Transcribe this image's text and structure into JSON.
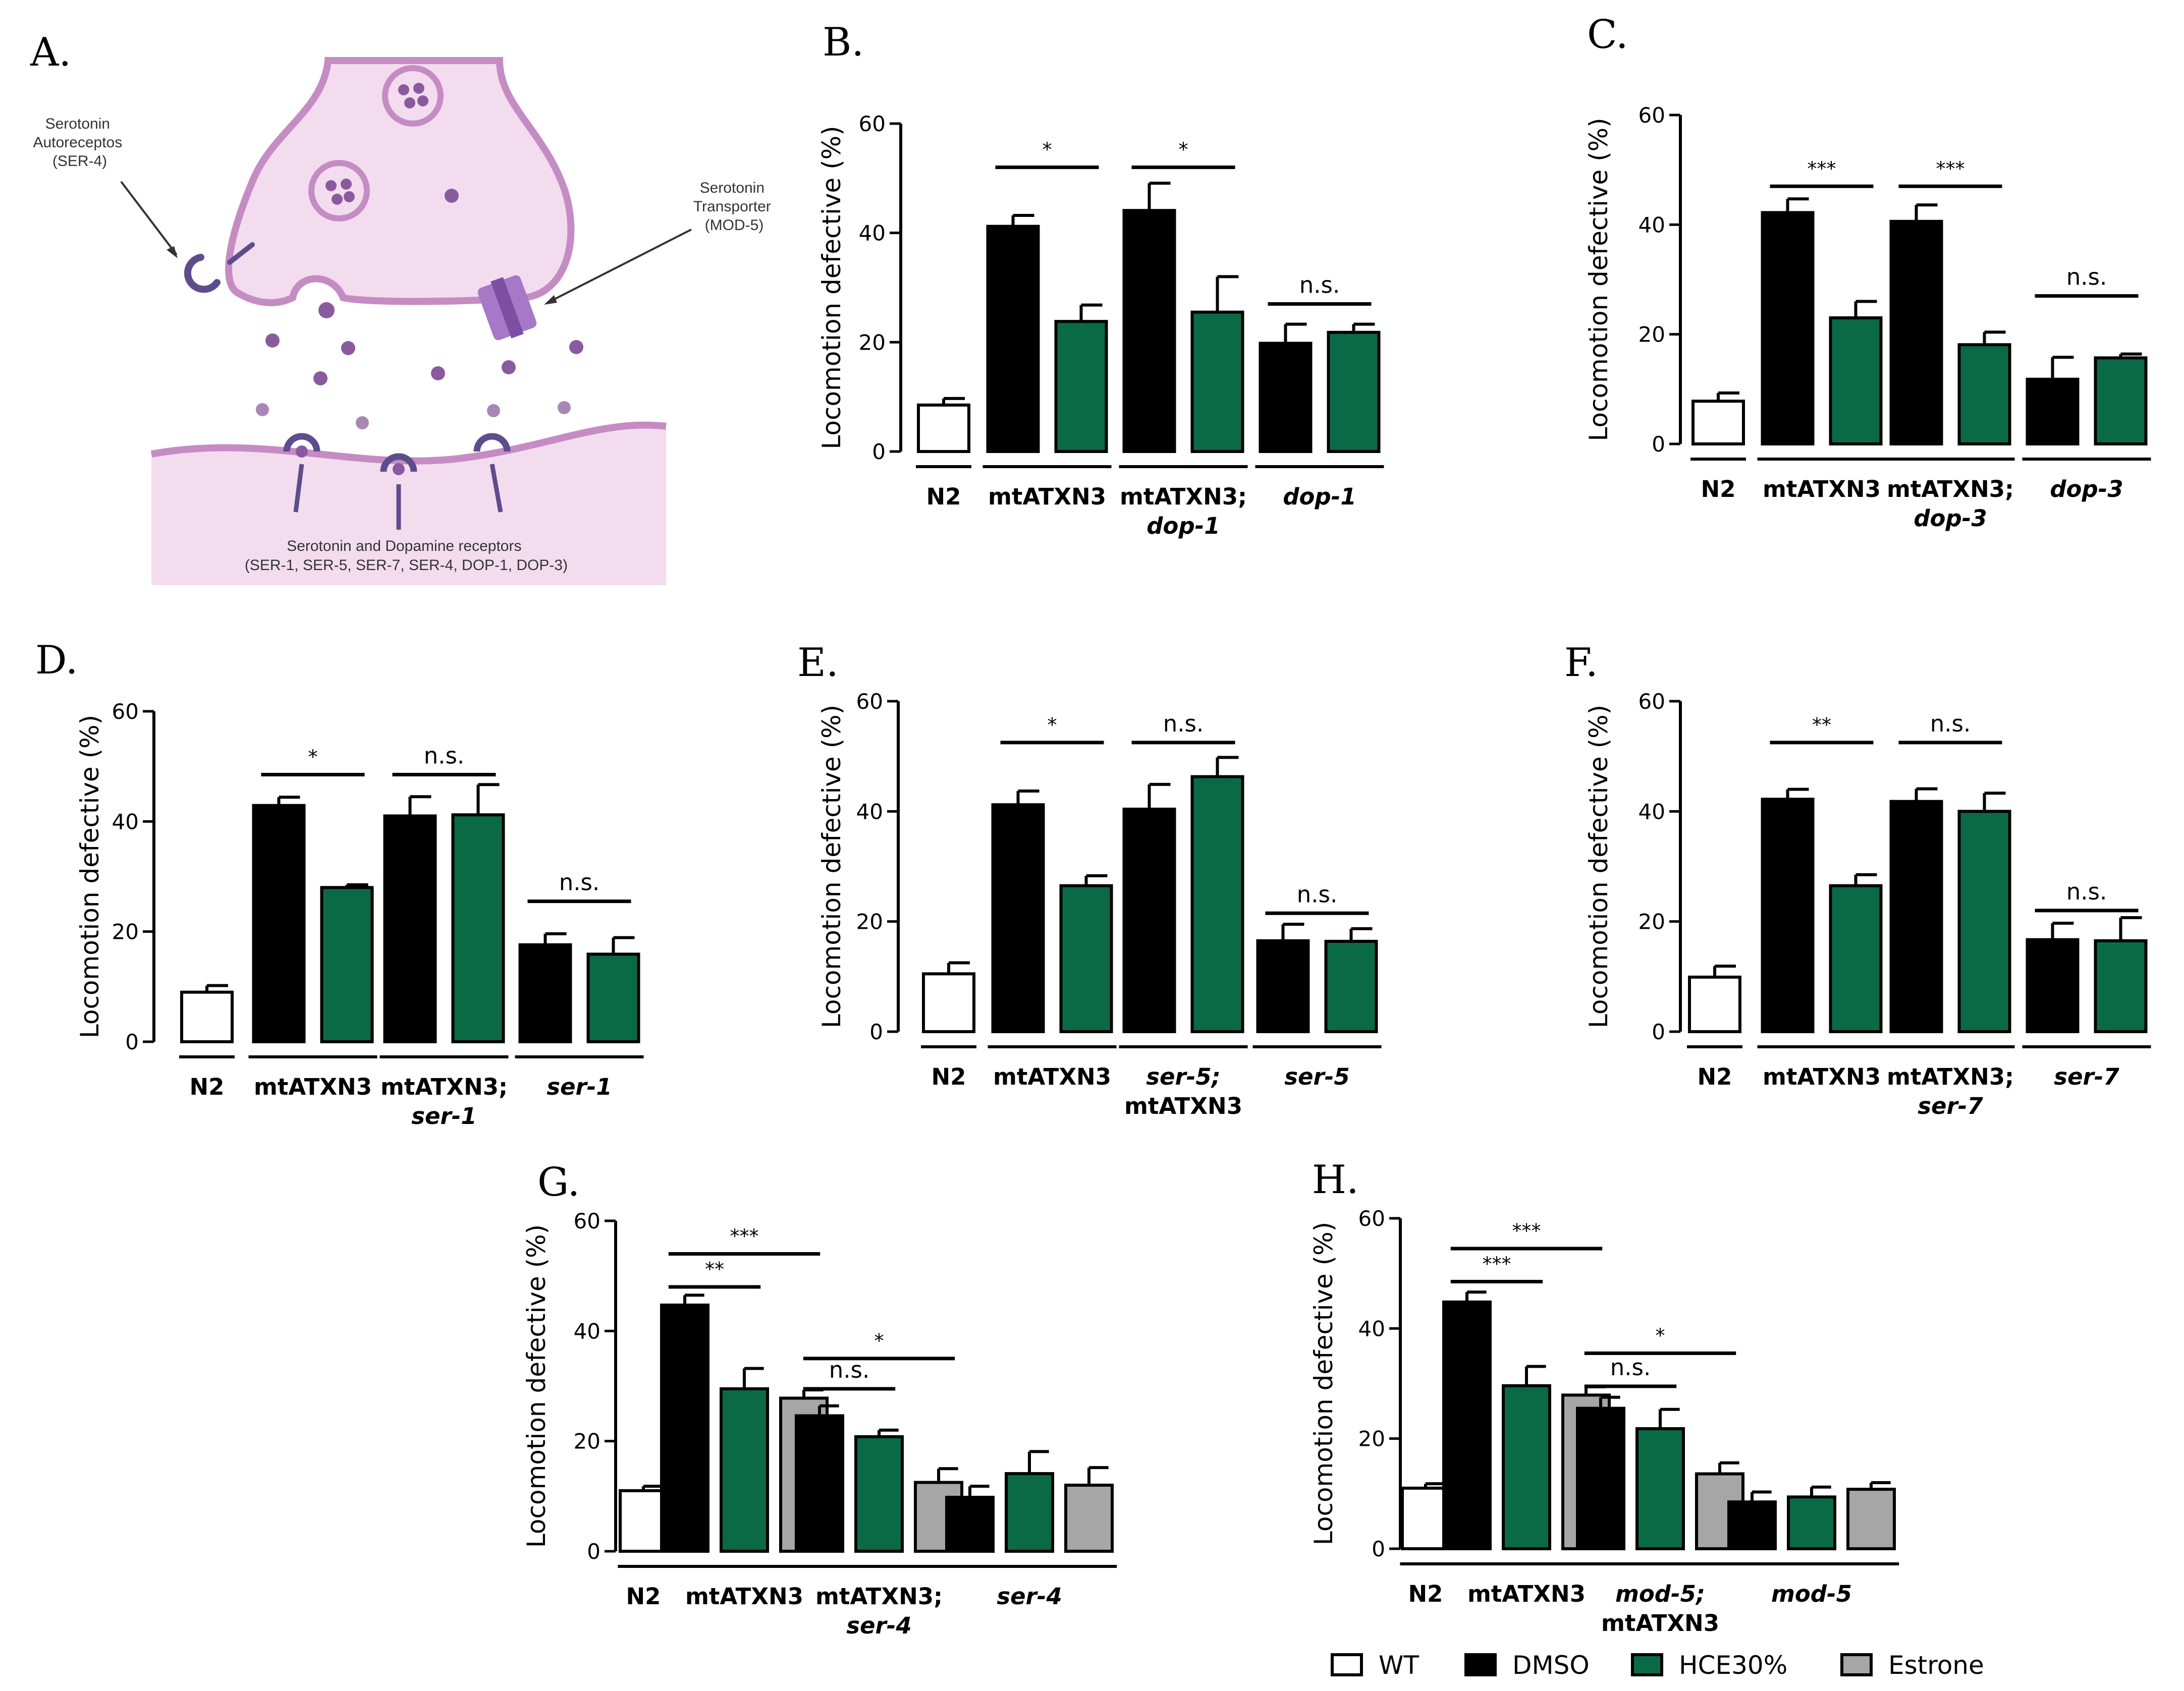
{
  "colors": {
    "WT": "#ffffff",
    "DMSO": "#000000",
    "HCE30%": "#0a6a45",
    "Estrone": "#a6a6a6",
    "membrane": "#c58cc4",
    "cytoplasm": "#f4dcef",
    "vesicle": "#8a5a9e",
    "receptor": "#5e4c8c",
    "transporter": "#a678c7"
  },
  "panel_a": {
    "letter": "A.",
    "autoreceptor_label": [
      "Serotonin",
      "Autoreceptos",
      "(SER-4)"
    ],
    "transporter_label": [
      "Serotonin",
      "Transporter",
      "(MOD-5)"
    ],
    "receptors_label": [
      "Serotonin and Dopamine receptors",
      "(SER-1, SER-5, SER-7, SER-4, DOP-1, DOP-3)"
    ]
  },
  "legend": [
    {
      "label": "WT",
      "key": "WT"
    },
    {
      "label": "DMSO",
      "key": "DMSO"
    },
    {
      "label": "HCE30%",
      "key": "HCE30%"
    },
    {
      "label": "Estrone",
      "key": "Estrone"
    }
  ],
  "chart_data": [
    {
      "id": "B",
      "letter": "B.",
      "type": "bar",
      "ylabel": "Locomotion defective (%)",
      "ylim": [
        0,
        60
      ],
      "yticks": [
        0,
        20,
        40,
        60
      ],
      "groups": [
        {
          "lines": [
            {
              "t": "N2",
              "it": false
            }
          ],
          "n": 1
        },
        {
          "lines": [
            {
              "t": "mtATXN3",
              "it": false
            }
          ],
          "n": 2
        },
        {
          "lines": [
            {
              "t": "mtATXN3;",
              "it": false
            },
            {
              "t": "dop-1",
              "it": true
            }
          ],
          "n": 2
        },
        {
          "lines": [
            {
              "t": "dop-1",
              "it": true
            }
          ],
          "n": 2
        }
      ],
      "bars": [
        {
          "key": "WT",
          "value": 8.5,
          "error": 1.2
        },
        {
          "key": "DMSO",
          "value": 41.2,
          "error": 2.0
        },
        {
          "key": "HCE30%",
          "value": 23.8,
          "error": 3.0
        },
        {
          "key": "DMSO",
          "value": 44.1,
          "error": 5.0
        },
        {
          "key": "HCE30%",
          "value": 25.5,
          "error": 6.5
        },
        {
          "key": "DMSO",
          "value": 19.8,
          "error": 3.5
        },
        {
          "key": "HCE30%",
          "value": 21.8,
          "error": 1.5
        }
      ],
      "annotations": [
        {
          "from": 1,
          "to": 2,
          "y": 52,
          "label": "*"
        },
        {
          "from": 3,
          "to": 4,
          "y": 52,
          "label": "*"
        },
        {
          "from": 5,
          "to": 6,
          "y": 27,
          "label": "n.s."
        }
      ]
    },
    {
      "id": "C",
      "letter": "C.",
      "type": "bar",
      "ylabel": "Locomotion defective (%)",
      "ylim": [
        0,
        60
      ],
      "yticks": [
        0,
        20,
        40,
        60
      ],
      "groups": [
        {
          "lines": [
            {
              "t": "N2",
              "it": false
            }
          ],
          "n": 1
        },
        {
          "lines": [
            {
              "t": "mtATXN3",
              "it": false
            }
          ],
          "n": 2
        },
        {
          "lines": [
            {
              "t": "mtATXN3;",
              "it": false
            },
            {
              "t": "dop-3",
              "it": true
            }
          ],
          "n": 2
        },
        {
          "lines": [
            {
              "t": "dop-3",
              "it": true
            }
          ],
          "n": 2
        }
      ],
      "bars": [
        {
          "key": "WT",
          "value": 7.8,
          "error": 1.5
        },
        {
          "key": "DMSO",
          "value": 42.2,
          "error": 2.5
        },
        {
          "key": "HCE30%",
          "value": 23.0,
          "error": 3.0
        },
        {
          "key": "DMSO",
          "value": 40.6,
          "error": 3.0
        },
        {
          "key": "HCE30%",
          "value": 18.1,
          "error": 2.3
        },
        {
          "key": "DMSO",
          "value": 11.8,
          "error": 4.0
        },
        {
          "key": "HCE30%",
          "value": 15.7,
          "error": 0.7
        }
      ],
      "annotations": [
        {
          "from": 1,
          "to": 2,
          "y": 47,
          "label": "***"
        },
        {
          "from": 3,
          "to": 4,
          "y": 47,
          "label": "***"
        },
        {
          "from": 5,
          "to": 6,
          "y": 27,
          "label": "n.s."
        }
      ]
    },
    {
      "id": "D",
      "letter": "D.",
      "type": "bar",
      "ylabel": "Locomotion defective (%)",
      "ylim": [
        0,
        60
      ],
      "yticks": [
        0,
        20,
        40,
        60
      ],
      "groups": [
        {
          "lines": [
            {
              "t": "N2",
              "it": false
            }
          ],
          "n": 1
        },
        {
          "lines": [
            {
              "t": "mtATXN3",
              "it": false
            }
          ],
          "n": 2
        },
        {
          "lines": [
            {
              "t": "mtATXN3;",
              "it": false
            },
            {
              "t": "ser-1",
              "it": true
            }
          ],
          "n": 2
        },
        {
          "lines": [
            {
              "t": "ser-1",
              "it": true
            }
          ],
          "n": 2
        }
      ],
      "bars": [
        {
          "key": "WT",
          "value": 9.0,
          "error": 1.2
        },
        {
          "key": "DMSO",
          "value": 42.9,
          "error": 1.5
        },
        {
          "key": "HCE30%",
          "value": 28.0,
          "error": 0.5
        },
        {
          "key": "DMSO",
          "value": 41.0,
          "error": 3.5
        },
        {
          "key": "HCE30%",
          "value": 41.2,
          "error": 5.5
        },
        {
          "key": "DMSO",
          "value": 17.6,
          "error": 2.0
        },
        {
          "key": "HCE30%",
          "value": 15.9,
          "error": 3.0
        }
      ],
      "annotations": [
        {
          "from": 1,
          "to": 2,
          "y": 48.5,
          "label": "*"
        },
        {
          "from": 3,
          "to": 4,
          "y": 48.5,
          "label": "n.s."
        },
        {
          "from": 5,
          "to": 6,
          "y": 25.5,
          "label": "n.s."
        }
      ]
    },
    {
      "id": "E",
      "letter": "E.",
      "type": "bar",
      "ylabel": "Locomotion defective (%)",
      "ylim": [
        0,
        60
      ],
      "yticks": [
        0,
        20,
        40,
        60
      ],
      "groups": [
        {
          "lines": [
            {
              "t": "N2",
              "it": false
            }
          ],
          "n": 1
        },
        {
          "lines": [
            {
              "t": "mtATXN3",
              "it": false
            }
          ],
          "n": 2
        },
        {
          "lines": [
            {
              "t": "ser-5;",
              "it": true
            },
            {
              "t": "mtATXN3",
              "it": false
            }
          ],
          "n": 2
        },
        {
          "lines": [
            {
              "t": "ser-5",
              "it": true
            }
          ],
          "n": 2
        }
      ],
      "bars": [
        {
          "key": "WT",
          "value": 10.5,
          "error": 2.0
        },
        {
          "key": "DMSO",
          "value": 41.2,
          "error": 2.5
        },
        {
          "key": "HCE30%",
          "value": 26.5,
          "error": 1.8
        },
        {
          "key": "DMSO",
          "value": 40.4,
          "error": 4.5
        },
        {
          "key": "HCE30%",
          "value": 46.3,
          "error": 3.5
        },
        {
          "key": "DMSO",
          "value": 16.5,
          "error": 3.0
        },
        {
          "key": "HCE30%",
          "value": 16.4,
          "error": 2.3
        }
      ],
      "annotations": [
        {
          "from": 1,
          "to": 2,
          "y": 52.5,
          "label": "*"
        },
        {
          "from": 3,
          "to": 4,
          "y": 52.5,
          "label": "n.s."
        },
        {
          "from": 5,
          "to": 6,
          "y": 21.5,
          "label": "n.s."
        }
      ]
    },
    {
      "id": "F",
      "letter": "F.",
      "type": "bar",
      "ylabel": "Locomotion defective (%)",
      "ylim": [
        0,
        60
      ],
      "yticks": [
        0,
        20,
        40,
        60
      ],
      "groups": [
        {
          "lines": [
            {
              "t": "N2",
              "it": false
            }
          ],
          "n": 1
        },
        {
          "lines": [
            {
              "t": "mtATXN3",
              "it": false
            }
          ],
          "n": 2
        },
        {
          "lines": [
            {
              "t": "mtATXN3;",
              "it": false
            },
            {
              "t": "ser-7",
              "it": true
            }
          ],
          "n": 2
        },
        {
          "lines": [
            {
              "t": "ser-7",
              "it": true
            }
          ],
          "n": 2
        }
      ],
      "bars": [
        {
          "key": "WT",
          "value": 9.9,
          "error": 2.0
        },
        {
          "key": "DMSO",
          "value": 42.2,
          "error": 1.8
        },
        {
          "key": "HCE30%",
          "value": 26.5,
          "error": 2.0
        },
        {
          "key": "DMSO",
          "value": 41.8,
          "error": 2.3
        },
        {
          "key": "HCE30%",
          "value": 40.0,
          "error": 3.3
        },
        {
          "key": "DMSO",
          "value": 16.7,
          "error": 3.0
        },
        {
          "key": "HCE30%",
          "value": 16.5,
          "error": 4.2
        }
      ],
      "annotations": [
        {
          "from": 1,
          "to": 2,
          "y": 52.5,
          "label": "**"
        },
        {
          "from": 3,
          "to": 4,
          "y": 52.5,
          "label": "n.s."
        },
        {
          "from": 5,
          "to": 6,
          "y": 22,
          "label": "n.s."
        }
      ]
    },
    {
      "id": "G",
      "letter": "G.",
      "type": "bar",
      "ylabel": "Locomotion defective (%)",
      "ylim": [
        0,
        60
      ],
      "yticks": [
        0,
        20,
        40,
        60
      ],
      "groups": [
        {
          "lines": [
            {
              "t": "N2",
              "it": false
            }
          ],
          "n": 1
        },
        {
          "lines": [
            {
              "t": "mtATXN3",
              "it": false
            }
          ],
          "n": 3
        },
        {
          "lines": [
            {
              "t": "mtATXN3;",
              "it": false
            },
            {
              "t": "ser-4",
              "it": true
            }
          ],
          "n": 3
        },
        {
          "lines": [
            {
              "t": "ser-4",
              "it": true
            }
          ],
          "n": 3
        }
      ],
      "bars": [
        {
          "key": "WT",
          "value": 11.0,
          "error": 0.8
        },
        {
          "key": "DMSO",
          "value": 44.7,
          "error": 1.8
        },
        {
          "key": "HCE30%",
          "value": 29.5,
          "error": 3.7
        },
        {
          "key": "Estrone",
          "value": 27.8,
          "error": 1.5
        },
        {
          "key": "DMSO",
          "value": 24.6,
          "error": 1.8
        },
        {
          "key": "HCE30%",
          "value": 20.8,
          "error": 1.2
        },
        {
          "key": "Estrone",
          "value": 12.5,
          "error": 2.5
        },
        {
          "key": "DMSO",
          "value": 9.8,
          "error": 2.0
        },
        {
          "key": "HCE30%",
          "value": 14.1,
          "error": 4.0
        },
        {
          "key": "Estrone",
          "value": 12.0,
          "error": 3.2
        }
      ],
      "annotations": [
        {
          "from": 1,
          "to": 3,
          "y": 54,
          "label": "***"
        },
        {
          "from": 1,
          "to": 2,
          "y": 48,
          "label": "**"
        },
        {
          "from": 4,
          "to": 6,
          "y": 35,
          "label": "*"
        },
        {
          "from": 4,
          "to": 5,
          "y": 29.5,
          "label": "n.s."
        }
      ]
    },
    {
      "id": "H",
      "letter": "H.",
      "type": "bar",
      "ylabel": "Locomotion defective (%)",
      "ylim": [
        0,
        60
      ],
      "yticks": [
        0,
        20,
        40,
        60
      ],
      "groups": [
        {
          "lines": [
            {
              "t": "N2",
              "it": false
            }
          ],
          "n": 1
        },
        {
          "lines": [
            {
              "t": "mtATXN3",
              "it": false
            }
          ],
          "n": 3
        },
        {
          "lines": [
            {
              "t": "mod-5;",
              "it": true
            },
            {
              "t": "mtATXN3",
              "it": false
            }
          ],
          "n": 3
        },
        {
          "lines": [
            {
              "t": "mod-5",
              "it": true
            }
          ],
          "n": 3
        }
      ],
      "bars": [
        {
          "key": "WT",
          "value": 11.0,
          "error": 0.8
        },
        {
          "key": "DMSO",
          "value": 44.8,
          "error": 1.8
        },
        {
          "key": "HCE30%",
          "value": 29.6,
          "error": 3.5
        },
        {
          "key": "Estrone",
          "value": 27.9,
          "error": 1.5
        },
        {
          "key": "DMSO",
          "value": 25.5,
          "error": 2.0
        },
        {
          "key": "HCE30%",
          "value": 21.8,
          "error": 3.5
        },
        {
          "key": "Estrone",
          "value": 13.6,
          "error": 2.0
        },
        {
          "key": "DMSO",
          "value": 8.5,
          "error": 1.8
        },
        {
          "key": "HCE30%",
          "value": 9.4,
          "error": 1.8
        },
        {
          "key": "Estrone",
          "value": 10.8,
          "error": 1.2
        }
      ],
      "annotations": [
        {
          "from": 1,
          "to": 3,
          "y": 54.5,
          "label": "***"
        },
        {
          "from": 1,
          "to": 2,
          "y": 48.5,
          "label": "***"
        },
        {
          "from": 4,
          "to": 6,
          "y": 35.5,
          "label": "*"
        },
        {
          "from": 4,
          "to": 5,
          "y": 29.5,
          "label": "n.s."
        }
      ]
    }
  ]
}
